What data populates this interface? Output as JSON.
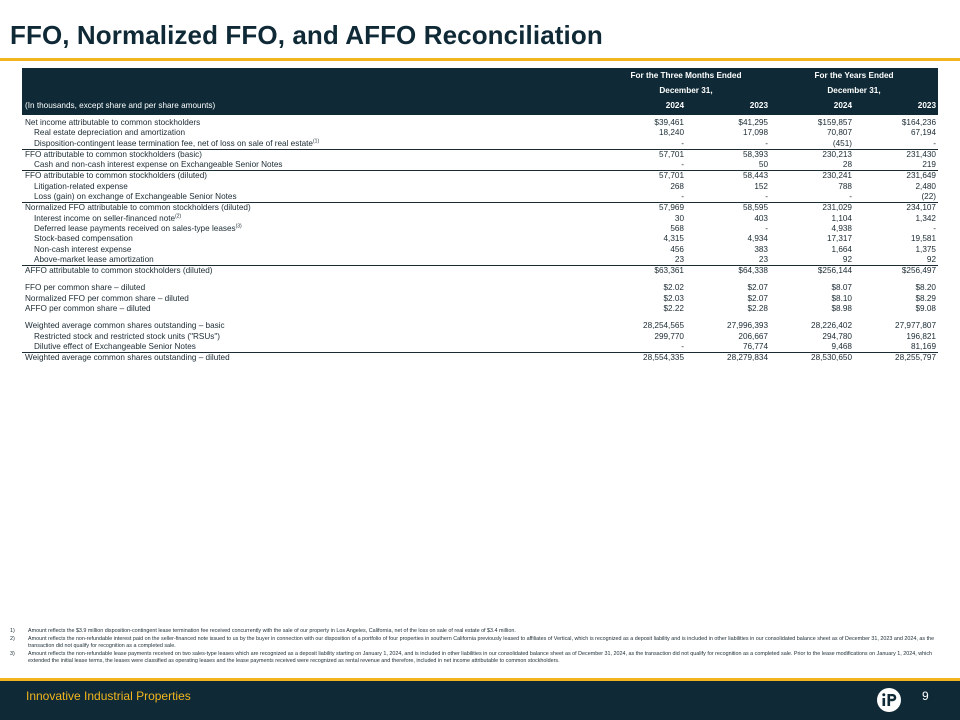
{
  "title": "FFO, Normalized FFO, and AFFO Reconciliation",
  "table": {
    "group_headers": [
      {
        "line1": "For the Three Months Ended",
        "line2": "December 31,"
      },
      {
        "line1": "For the Years Ended",
        "line2": "December 31,"
      }
    ],
    "units_label": "(In thousands, except share and per share amounts)",
    "years": [
      "2024",
      "2023",
      "2024",
      "2023"
    ],
    "rows": [
      {
        "label": "Net income attributable to common stockholders",
        "ref": "",
        "values": [
          "$39,461",
          "$41,295",
          "$159,857",
          "$164,236"
        ]
      },
      {
        "label": "Real estate depreciation and amortization",
        "ref": "",
        "values": [
          "18,240",
          "17,098",
          "70,807",
          "67,194"
        ]
      },
      {
        "label": "Disposition-contingent lease termination fee, net of loss on sale of real estate",
        "ref": "(1)",
        "values": [
          "-",
          "-",
          "(451)",
          "-"
        ]
      },
      {
        "label": "FFO attributable to common stockholders (basic)",
        "ref": "",
        "values": [
          "57,701",
          "58,393",
          "230,213",
          "231,430"
        ]
      },
      {
        "label": "Cash and non-cash interest expense on Exchangeable Senior Notes",
        "ref": "",
        "values": [
          "-",
          "50",
          "28",
          "219"
        ]
      },
      {
        "label": "FFO attributable to common stockholders (diluted)",
        "ref": "",
        "values": [
          "57,701",
          "58,443",
          "230,241",
          "231,649"
        ]
      },
      {
        "label": "Litigation-related expense",
        "ref": "",
        "values": [
          "268",
          "152",
          "788",
          "2,480"
        ]
      },
      {
        "label": "Loss (gain) on exchange of Exchangeable Senior Notes",
        "ref": "",
        "values": [
          "-",
          "-",
          "-",
          "(22)"
        ]
      },
      {
        "label": "Normalized FFO attributable to common stockholders (diluted)",
        "ref": "",
        "values": [
          "57,969",
          "58,595",
          "231,029",
          "234,107"
        ]
      },
      {
        "label": "Interest income on seller-financed note",
        "ref": "(2)",
        "values": [
          "30",
          "403",
          "1,104",
          "1,342"
        ]
      },
      {
        "label": "Deferred lease payments received on sales-type leases",
        "ref": "(3)",
        "values": [
          "568",
          "-",
          "4,938",
          "-"
        ]
      },
      {
        "label": "Stock-based compensation",
        "ref": "",
        "values": [
          "4,315",
          "4,934",
          "17,317",
          "19,581"
        ]
      },
      {
        "label": "Non-cash interest expense",
        "ref": "",
        "values": [
          "456",
          "383",
          "1,664",
          "1,375"
        ]
      },
      {
        "label": "Above-market lease amortization",
        "ref": "",
        "values": [
          "23",
          "23",
          "92",
          "92"
        ]
      },
      {
        "label": "AFFO attributable to common stockholders (diluted)",
        "ref": "",
        "values": [
          "$63,361",
          "$64,338",
          "$256,144",
          "$256,497"
        ]
      },
      {
        "label": "FFO per common share – diluted",
        "ref": "",
        "values": [
          "$2.02",
          "$2.07",
          "$8.07",
          "$8.20"
        ]
      },
      {
        "label": "Normalized FFO per common share – diluted",
        "ref": "",
        "values": [
          "$2.03",
          "$2.07",
          "$8.10",
          "$8.29"
        ]
      },
      {
        "label": "AFFO per common share – diluted",
        "ref": "",
        "values": [
          "$2.22",
          "$2.28",
          "$8.98",
          "$9.08"
        ]
      },
      {
        "label": "Weighted average common shares outstanding – basic",
        "ref": "",
        "values": [
          "28,254,565",
          "27,996,393",
          "28,226,402",
          "27,977,807"
        ]
      },
      {
        "label": "Restricted stock and restricted stock units (\"RSUs\")",
        "ref": "",
        "values": [
          "299,770",
          "206,667",
          "294,780",
          "196,821"
        ]
      },
      {
        "label": "Dilutive effect of Exchangeable Senior Notes",
        "ref": "",
        "values": [
          "-",
          "76,774",
          "9,468",
          "81,169"
        ]
      },
      {
        "label": "Weighted average common shares outstanding – diluted",
        "ref": "",
        "values": [
          "28,554,335",
          "28,279,834",
          "28,530,650",
          "28,255,797"
        ]
      }
    ]
  },
  "footnotes": [
    {
      "num": "1)",
      "text": "Amount reflects the $3.9 million disposition-contingent lease termination fee received concurrently with the sale of our property in Los Angeles, California, net of the loss on sale of real estate of $3.4 million."
    },
    {
      "num": "2)",
      "text": "Amount reflects the non-refundable interest paid on the seller-financed note issued to us by the buyer in connection with our disposition of a portfolio of four properties in southern California previously leased to affiliates of Vertical, which is recognized as a deposit liability and is included in other liabilities in our consolidated balance sheet as of December 31, 2023 and 2024, as the transaction did not qualify for recognition as a completed sale."
    },
    {
      "num": "3)",
      "text": "Amount reflects the non-refundable lease payments received on two sales-type leases which are recognized as a deposit liability starting on January 1, 2024, and is included in other liabilities in our consolidated balance sheet as of December 31, 2024, as the transaction did not qualify for recognition as a completed sale. Prior to the lease modifications on January 1, 2024, which extended the initial lease terms, the leases were classified as operating leases and the lease payments received were recognized as rental revenue and therefore, included in net income attributable to common stockholders."
    }
  ],
  "footer": {
    "brand": "Innovative Industrial Properties",
    "page_number": "9"
  },
  "colors": {
    "navy": "#0f2a36",
    "gold": "#f2b51d"
  },
  "icons": {
    "logo": "iip-logo-icon"
  }
}
